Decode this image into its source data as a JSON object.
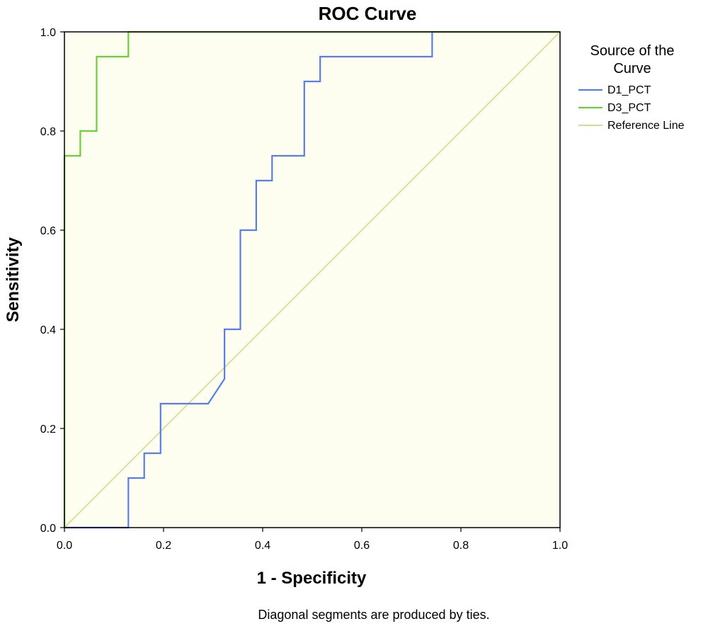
{
  "chart_data": {
    "type": "line",
    "title": "ROC Curve",
    "xlabel": "1 - Specificity",
    "ylabel": "Sensitivity",
    "xlim": [
      0,
      1
    ],
    "ylim": [
      0,
      1
    ],
    "x_ticks": [
      "0.0",
      "0.2",
      "0.4",
      "0.6",
      "0.8",
      "1.0"
    ],
    "y_ticks": [
      "0.0",
      "0.2",
      "0.4",
      "0.6",
      "0.8",
      "1.0"
    ],
    "grid": false,
    "plot_background": "#fdfdf0",
    "legend": {
      "title_lines": [
        "Source of the",
        "Curve"
      ],
      "placement": "right"
    },
    "series": [
      {
        "name": "D1_PCT",
        "color": "#5b7ee5",
        "points": [
          [
            0,
            0
          ],
          [
            0.129,
            0
          ],
          [
            0.129,
            0.1
          ],
          [
            0.161,
            0.1
          ],
          [
            0.161,
            0.15
          ],
          [
            0.194,
            0.15
          ],
          [
            0.194,
            0.25
          ],
          [
            0.29,
            0.25
          ],
          [
            0.323,
            0.3
          ],
          [
            0.323,
            0.4
          ],
          [
            0.355,
            0.4
          ],
          [
            0.355,
            0.6
          ],
          [
            0.387,
            0.6
          ],
          [
            0.387,
            0.7
          ],
          [
            0.419,
            0.7
          ],
          [
            0.419,
            0.75
          ],
          [
            0.484,
            0.75
          ],
          [
            0.484,
            0.9
          ],
          [
            0.516,
            0.9
          ],
          [
            0.516,
            0.95
          ],
          [
            0.742,
            0.95
          ],
          [
            0.742,
            1.0
          ],
          [
            1.0,
            1.0
          ]
        ]
      },
      {
        "name": "D3_PCT",
        "color": "#6ccf3a",
        "points": [
          [
            0,
            0
          ],
          [
            0,
            0.75
          ],
          [
            0.032,
            0.75
          ],
          [
            0.032,
            0.8
          ],
          [
            0.065,
            0.8
          ],
          [
            0.065,
            0.95
          ],
          [
            0.129,
            0.95
          ],
          [
            0.129,
            1.0
          ],
          [
            1.0,
            1.0
          ]
        ]
      },
      {
        "name": "Reference Line",
        "color": "#d8dc9a",
        "points": [
          [
            0,
            0
          ],
          [
            1,
            1
          ]
        ]
      }
    ],
    "footnote": "Diagonal segments are produced by ties."
  }
}
